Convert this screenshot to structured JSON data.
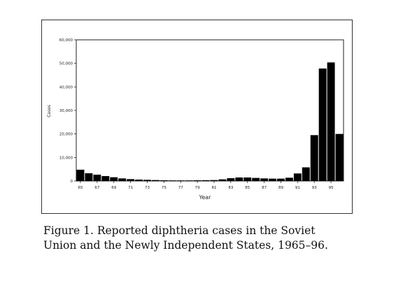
{
  "figure": {
    "caption_line1": "Figure 1. Reported diphtheria cases in the Soviet",
    "caption_line2": "Union and the Newly Independent States, 1965–96."
  },
  "chart_data": {
    "type": "bar",
    "title": "",
    "xlabel": "Year",
    "ylabel": "Cases",
    "ylim": [
      0,
      60000
    ],
    "yticks": [
      0,
      10000,
      20000,
      30000,
      40000,
      50000,
      60000
    ],
    "ytick_labels": [
      "0",
      "10,000",
      "20,000",
      "30,000",
      "40,000",
      "50,000",
      "60,000"
    ],
    "xtick_labels": [
      "65",
      "67",
      "69",
      "71",
      "73",
      "75",
      "77",
      "79",
      "81",
      "83",
      "85",
      "87",
      "89",
      "91",
      "93",
      "95"
    ],
    "grid": false,
    "bar_color": "#000000",
    "categories": [
      "65",
      "66",
      "67",
      "68",
      "69",
      "70",
      "71",
      "72",
      "73",
      "74",
      "75",
      "76",
      "77",
      "78",
      "79",
      "80",
      "81",
      "82",
      "83",
      "84",
      "85",
      "86",
      "87",
      "88",
      "89",
      "90",
      "91",
      "92",
      "93",
      "94",
      "95",
      "96"
    ],
    "values": [
      4800,
      3300,
      2700,
      2100,
      1600,
      1100,
      800,
      600,
      500,
      400,
      300,
      250,
      250,
      250,
      300,
      350,
      400,
      700,
      1200,
      1500,
      1500,
      1300,
      1100,
      1000,
      1000,
      1400,
      3200,
      5800,
      19500,
      47800,
      50400,
      20000
    ]
  }
}
